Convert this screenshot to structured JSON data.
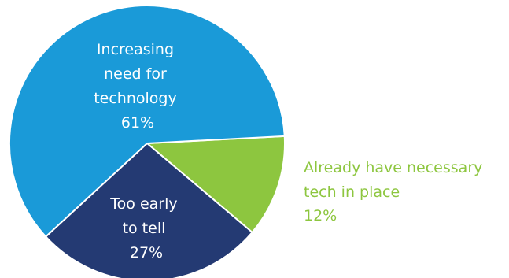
{
  "chart_data": {
    "type": "pie",
    "slices": [
      {
        "label_lines": [
          "Increasing",
          "need for",
          "technology"
        ],
        "value_text": "61%",
        "value": 61,
        "color": "#1a9ad8",
        "label_position": "inside"
      },
      {
        "label_lines": [
          "Already have necessary",
          "tech in place"
        ],
        "value_text": "12%",
        "value": 12,
        "color": "#8dc63f",
        "label_position": "outside-right"
      },
      {
        "label_lines": [
          "Too early",
          "to tell"
        ],
        "value_text": "27%",
        "value": 27,
        "color": "#243a73",
        "label_position": "inside"
      }
    ],
    "legend": "none"
  }
}
